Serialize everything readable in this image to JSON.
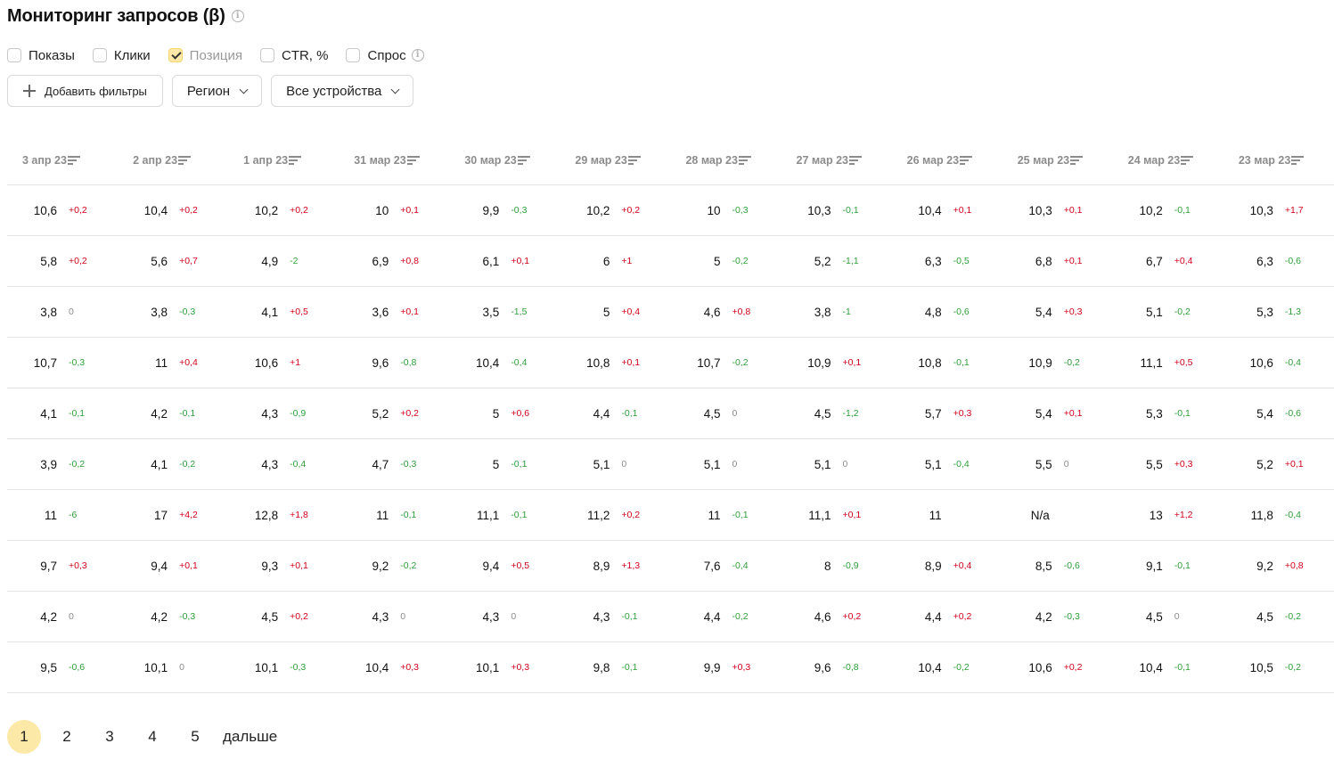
{
  "header": {
    "title": "Мониторинг запросов (β)"
  },
  "checkboxes": [
    {
      "label": "Показы",
      "checked": false
    },
    {
      "label": "Клики",
      "checked": false
    },
    {
      "label": "Позиция",
      "checked": true
    },
    {
      "label": "CTR, %",
      "checked": false
    },
    {
      "label": "Спрос",
      "checked": false
    }
  ],
  "filters": {
    "add_label": "Добавить фильтры",
    "region_label": "Регион",
    "devices_label": "Все устройства"
  },
  "table": {
    "columns": [
      "3 апр 23",
      "2 апр 23",
      "1 апр 23",
      "31 мар 23",
      "30 мар 23",
      "29 мар 23",
      "28 мар 23",
      "27 мар 23",
      "26 мар 23",
      "25 мар 23",
      "24 мар 23",
      "23 мар 23"
    ],
    "rows": [
      [
        [
          "10,6",
          "+0,2"
        ],
        [
          "10,4",
          "+0,2"
        ],
        [
          "10,2",
          "+0,2"
        ],
        [
          "10",
          "+0,1"
        ],
        [
          "9,9",
          "-0,3"
        ],
        [
          "10,2",
          "+0,2"
        ],
        [
          "10",
          "-0,3"
        ],
        [
          "10,3",
          "-0,1"
        ],
        [
          "10,4",
          "+0,1"
        ],
        [
          "10,3",
          "+0,1"
        ],
        [
          "10,2",
          "-0,1"
        ],
        [
          "10,3",
          "+1,7"
        ]
      ],
      [
        [
          "5,8",
          "+0,2"
        ],
        [
          "5,6",
          "+0,7"
        ],
        [
          "4,9",
          "-2"
        ],
        [
          "6,9",
          "+0,8"
        ],
        [
          "6,1",
          "+0,1"
        ],
        [
          "6",
          "+1"
        ],
        [
          "5",
          "-0,2"
        ],
        [
          "5,2",
          "-1,1"
        ],
        [
          "6,3",
          "-0,5"
        ],
        [
          "6,8",
          "+0,1"
        ],
        [
          "6,7",
          "+0,4"
        ],
        [
          "6,3",
          "-0,6"
        ]
      ],
      [
        [
          "3,8",
          "0"
        ],
        [
          "3,8",
          "-0,3"
        ],
        [
          "4,1",
          "+0,5"
        ],
        [
          "3,6",
          "+0,1"
        ],
        [
          "3,5",
          "-1,5"
        ],
        [
          "5",
          "+0,4"
        ],
        [
          "4,6",
          "+0,8"
        ],
        [
          "3,8",
          "-1"
        ],
        [
          "4,8",
          "-0,6"
        ],
        [
          "5,4",
          "+0,3"
        ],
        [
          "5,1",
          "-0,2"
        ],
        [
          "5,3",
          "-1,3"
        ]
      ],
      [
        [
          "10,7",
          "-0,3"
        ],
        [
          "11",
          "+0,4"
        ],
        [
          "10,6",
          "+1"
        ],
        [
          "9,6",
          "-0,8"
        ],
        [
          "10,4",
          "-0,4"
        ],
        [
          "10,8",
          "+0,1"
        ],
        [
          "10,7",
          "-0,2"
        ],
        [
          "10,9",
          "+0,1"
        ],
        [
          "10,8",
          "-0,1"
        ],
        [
          "10,9",
          "-0,2"
        ],
        [
          "11,1",
          "+0,5"
        ],
        [
          "10,6",
          "-0,4"
        ]
      ],
      [
        [
          "4,1",
          "-0,1"
        ],
        [
          "4,2",
          "-0,1"
        ],
        [
          "4,3",
          "-0,9"
        ],
        [
          "5,2",
          "+0,2"
        ],
        [
          "5",
          "+0,6"
        ],
        [
          "4,4",
          "-0,1"
        ],
        [
          "4,5",
          "0"
        ],
        [
          "4,5",
          "-1,2"
        ],
        [
          "5,7",
          "+0,3"
        ],
        [
          "5,4",
          "+0,1"
        ],
        [
          "5,3",
          "-0,1"
        ],
        [
          "5,4",
          "-0,6"
        ]
      ],
      [
        [
          "3,9",
          "-0,2"
        ],
        [
          "4,1",
          "-0,2"
        ],
        [
          "4,3",
          "-0,4"
        ],
        [
          "4,7",
          "-0,3"
        ],
        [
          "5",
          "-0,1"
        ],
        [
          "5,1",
          "0"
        ],
        [
          "5,1",
          "0"
        ],
        [
          "5,1",
          "0"
        ],
        [
          "5,1",
          "-0,4"
        ],
        [
          "5,5",
          "0"
        ],
        [
          "5,5",
          "+0,3"
        ],
        [
          "5,2",
          "+0,1"
        ]
      ],
      [
        [
          "11",
          "-6"
        ],
        [
          "17",
          "+4,2"
        ],
        [
          "12,8",
          "+1,8"
        ],
        [
          "11",
          "-0,1"
        ],
        [
          "11,1",
          "-0,1"
        ],
        [
          "11,2",
          "+0,2"
        ],
        [
          "11",
          "-0,1"
        ],
        [
          "11,1",
          "+0,1"
        ],
        [
          "11",
          ""
        ],
        [
          "N/a",
          ""
        ],
        [
          "13",
          "+1,2"
        ],
        [
          "11,8",
          "-0,4"
        ]
      ],
      [
        [
          "9,7",
          "+0,3"
        ],
        [
          "9,4",
          "+0,1"
        ],
        [
          "9,3",
          "+0,1"
        ],
        [
          "9,2",
          "-0,2"
        ],
        [
          "9,4",
          "+0,5"
        ],
        [
          "8,9",
          "+1,3"
        ],
        [
          "7,6",
          "-0,4"
        ],
        [
          "8",
          "-0,9"
        ],
        [
          "8,9",
          "+0,4"
        ],
        [
          "8,5",
          "-0,6"
        ],
        [
          "9,1",
          "-0,1"
        ],
        [
          "9,2",
          "+0,8"
        ]
      ],
      [
        [
          "4,2",
          "0"
        ],
        [
          "4,2",
          "-0,3"
        ],
        [
          "4,5",
          "+0,2"
        ],
        [
          "4,3",
          "0"
        ],
        [
          "4,3",
          "0"
        ],
        [
          "4,3",
          "-0,1"
        ],
        [
          "4,4",
          "-0,2"
        ],
        [
          "4,6",
          "+0,2"
        ],
        [
          "4,4",
          "+0,2"
        ],
        [
          "4,2",
          "-0,3"
        ],
        [
          "4,5",
          "0"
        ],
        [
          "4,5",
          "-0,2"
        ]
      ],
      [
        [
          "9,5",
          "-0,6"
        ],
        [
          "10,1",
          "0"
        ],
        [
          "10,1",
          "-0,3"
        ],
        [
          "10,4",
          "+0,3"
        ],
        [
          "10,1",
          "+0,3"
        ],
        [
          "9,8",
          "-0,1"
        ],
        [
          "9,9",
          "+0,3"
        ],
        [
          "9,6",
          "-0,8"
        ],
        [
          "10,4",
          "-0,2"
        ],
        [
          "10,6",
          "+0,2"
        ],
        [
          "10,4",
          "-0,1"
        ],
        [
          "10,5",
          "-0,2"
        ]
      ]
    ]
  },
  "pagination": {
    "pages": [
      "1",
      "2",
      "3",
      "4",
      "5"
    ],
    "active": "1",
    "next_label": "дальше"
  },
  "colors": {
    "accent": "#fde9a7",
    "delta_up": "#d0021b",
    "delta_down": "#2e9e3a",
    "muted": "#8c8c8c"
  }
}
